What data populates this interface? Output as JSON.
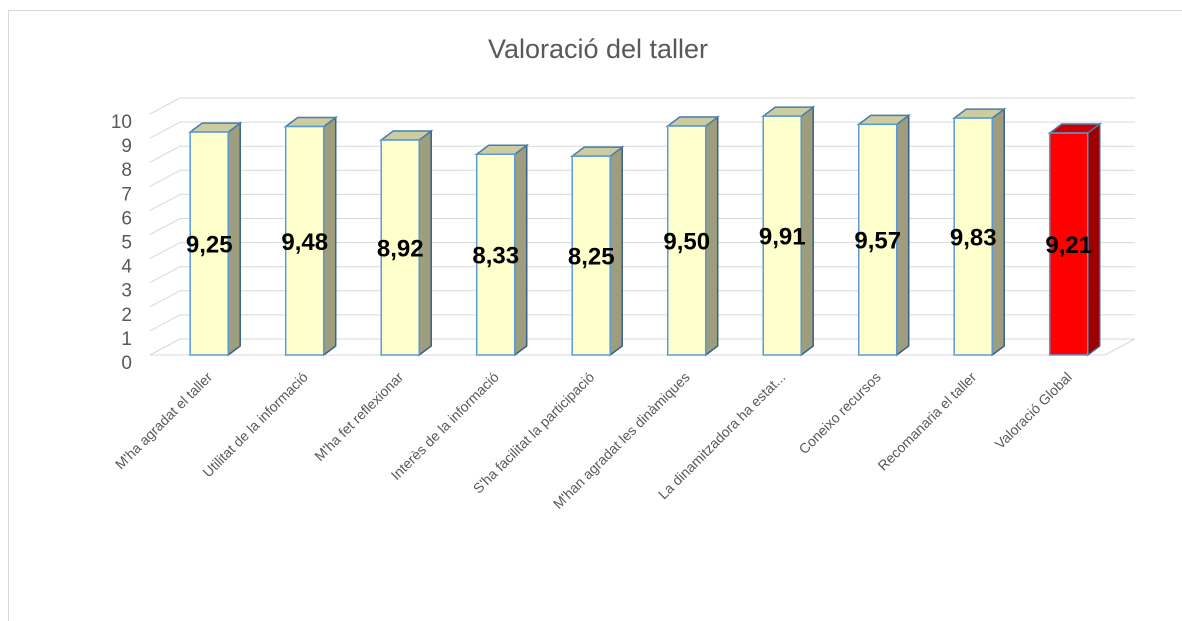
{
  "chart_data": {
    "type": "bar3d",
    "title": "Valoració del taller",
    "categories": [
      "M'ha agradat el taller",
      "Utilitat de la informació",
      "M'ha fet reflexionar",
      "Interès de la informació",
      "S'ha facilitat la participació",
      "M'han agradat les dinàmiques",
      "La dinamitzadora ha estat...",
      "Coneixo recursos",
      "Recomanaria el taller",
      "Valoració Global"
    ],
    "values": [
      9.25,
      9.48,
      8.92,
      8.33,
      8.25,
      9.5,
      9.91,
      9.57,
      9.83,
      9.21
    ],
    "value_labels": [
      "9,25",
      "9,48",
      "8,92",
      "8,33",
      "8,25",
      "9,50",
      "9,91",
      "9,57",
      "9,83",
      "9,21"
    ],
    "colors": [
      "#ffffcc",
      "#ffffcc",
      "#ffffcc",
      "#ffffcc",
      "#ffffcc",
      "#ffffcc",
      "#ffffcc",
      "#ffffcc",
      "#ffffcc",
      "#ff0000"
    ],
    "ylim": [
      0,
      10
    ],
    "yticks": [
      0,
      1,
      2,
      3,
      4,
      5,
      6,
      7,
      8,
      9,
      10
    ],
    "grid": true
  }
}
